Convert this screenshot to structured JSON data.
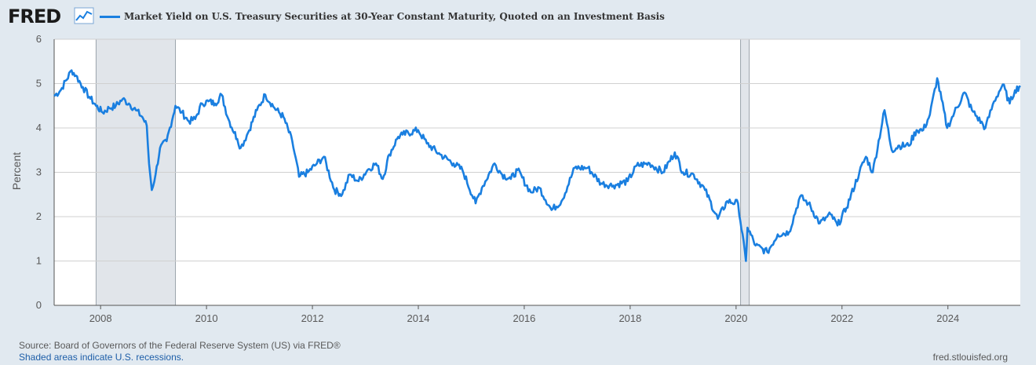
{
  "header": {
    "logo": "FRED",
    "logo_icon": "chart-line-icon",
    "title": "Market Yield on U.S. Treasury Securities at 30-Year Constant Maturity, Quoted on an Investment Basis"
  },
  "footer": {
    "source": "Source: Board of Governors of the Federal Reserve System (US) via FRED®",
    "recession_note": "Shaded areas indicate U.S. recessions.",
    "site": "fred.stlouisfed.org"
  },
  "colors": {
    "background": "#e1e9f0",
    "plot_background": "#ffffff",
    "line": "#1a7fe0",
    "recession": "#e1e5ea",
    "grid": "#d0d0d0"
  },
  "chart_data": {
    "type": "line",
    "title": "Market Yield on U.S. Treasury Securities at 30-Year Constant Maturity, Quoted on an Investment Basis",
    "xlabel": "",
    "ylabel": "Percent",
    "xlim": [
      "2007-02-15",
      "2025-05-15"
    ],
    "ylim": [
      0,
      6
    ],
    "yticks": [
      0,
      1,
      2,
      3,
      4,
      5,
      6
    ],
    "xticks": [
      "2008",
      "2010",
      "2012",
      "2014",
      "2016",
      "2018",
      "2020",
      "2022",
      "2024"
    ],
    "grid": true,
    "recessions": [
      {
        "start": "2007-12-01",
        "end": "2009-06-01"
      },
      {
        "start": "2020-02-01",
        "end": "2020-04-01"
      }
    ],
    "series": [
      {
        "values": [
          [
            "2007-02-15",
            4.72
          ],
          [
            "2007-04-01",
            4.85
          ],
          [
            "2007-06-15",
            5.3
          ],
          [
            "2007-07-15",
            5.18
          ],
          [
            "2007-09-01",
            4.92
          ],
          [
            "2007-10-15",
            4.7
          ],
          [
            "2007-12-01",
            4.5
          ],
          [
            "2008-01-15",
            4.35
          ],
          [
            "2008-03-01",
            4.45
          ],
          [
            "2008-04-15",
            4.5
          ],
          [
            "2008-06-01",
            4.65
          ],
          [
            "2008-07-15",
            4.55
          ],
          [
            "2008-09-01",
            4.4
          ],
          [
            "2008-10-15",
            4.25
          ],
          [
            "2008-11-15",
            4.05
          ],
          [
            "2008-12-01",
            3.2
          ],
          [
            "2008-12-20",
            2.6
          ],
          [
            "2009-01-15",
            2.95
          ],
          [
            "2009-02-15",
            3.55
          ],
          [
            "2009-04-01",
            3.7
          ],
          [
            "2009-06-01",
            4.5
          ],
          [
            "2009-07-15",
            4.35
          ],
          [
            "2009-09-01",
            4.15
          ],
          [
            "2009-10-15",
            4.2
          ],
          [
            "2009-12-01",
            4.55
          ],
          [
            "2010-01-15",
            4.6
          ],
          [
            "2010-03-01",
            4.55
          ],
          [
            "2010-04-15",
            4.75
          ],
          [
            "2010-06-01",
            4.2
          ],
          [
            "2010-08-01",
            3.75
          ],
          [
            "2010-08-25",
            3.55
          ],
          [
            "2010-10-15",
            3.9
          ],
          [
            "2010-12-15",
            4.4
          ],
          [
            "2011-02-10",
            4.75
          ],
          [
            "2011-04-15",
            4.45
          ],
          [
            "2011-06-15",
            4.25
          ],
          [
            "2011-08-15",
            3.7
          ],
          [
            "2011-10-01",
            2.9
          ],
          [
            "2011-12-01",
            3.0
          ],
          [
            "2012-02-01",
            3.2
          ],
          [
            "2012-03-20",
            3.35
          ],
          [
            "2012-06-01",
            2.6
          ],
          [
            "2012-07-25",
            2.5
          ],
          [
            "2012-09-15",
            2.95
          ],
          [
            "2012-11-15",
            2.8
          ],
          [
            "2013-01-15",
            3.05
          ],
          [
            "2013-03-15",
            3.2
          ],
          [
            "2013-05-01",
            2.85
          ],
          [
            "2013-06-15",
            3.4
          ],
          [
            "2013-08-15",
            3.8
          ],
          [
            "2013-09-15",
            3.85
          ],
          [
            "2013-12-31",
            3.95
          ],
          [
            "2014-03-01",
            3.65
          ],
          [
            "2014-06-01",
            3.4
          ],
          [
            "2014-09-01",
            3.2
          ],
          [
            "2014-11-01",
            3.05
          ],
          [
            "2015-01-31",
            2.3
          ],
          [
            "2015-03-15",
            2.65
          ],
          [
            "2015-06-10",
            3.2
          ],
          [
            "2015-08-01",
            2.95
          ],
          [
            "2015-10-01",
            2.85
          ],
          [
            "2015-11-15",
            3.05
          ],
          [
            "2016-02-15",
            2.55
          ],
          [
            "2016-04-15",
            2.65
          ],
          [
            "2016-07-08",
            2.15
          ],
          [
            "2016-09-15",
            2.35
          ],
          [
            "2016-12-15",
            3.1
          ],
          [
            "2017-03-15",
            3.1
          ],
          [
            "2017-06-15",
            2.75
          ],
          [
            "2017-09-07",
            2.7
          ],
          [
            "2017-12-15",
            2.8
          ],
          [
            "2018-02-15",
            3.15
          ],
          [
            "2018-05-15",
            3.2
          ],
          [
            "2018-08-15",
            3.0
          ],
          [
            "2018-11-05",
            3.45
          ],
          [
            "2018-12-31",
            3.0
          ],
          [
            "2019-03-15",
            2.95
          ],
          [
            "2019-06-01",
            2.6
          ],
          [
            "2019-08-28",
            1.95
          ],
          [
            "2019-11-01",
            2.35
          ],
          [
            "2020-01-15",
            2.3
          ],
          [
            "2020-03-09",
            1.0
          ],
          [
            "2020-03-20",
            1.75
          ],
          [
            "2020-05-15",
            1.35
          ],
          [
            "2020-08-04",
            1.2
          ],
          [
            "2020-10-15",
            1.6
          ],
          [
            "2021-01-01",
            1.65
          ],
          [
            "2021-03-18",
            2.45
          ],
          [
            "2021-05-15",
            2.3
          ],
          [
            "2021-08-01",
            1.85
          ],
          [
            "2021-10-15",
            2.05
          ],
          [
            "2021-12-01",
            1.8
          ],
          [
            "2022-02-01",
            2.2
          ],
          [
            "2022-05-01",
            3.0
          ],
          [
            "2022-06-15",
            3.35
          ],
          [
            "2022-08-01",
            3.0
          ],
          [
            "2022-10-21",
            4.4
          ],
          [
            "2022-12-10",
            3.5
          ],
          [
            "2023-02-01",
            3.6
          ],
          [
            "2023-04-05",
            3.6
          ],
          [
            "2023-05-30",
            3.95
          ],
          [
            "2023-07-15",
            3.95
          ],
          [
            "2023-08-30",
            4.3
          ],
          [
            "2023-10-19",
            5.12
          ],
          [
            "2023-12-27",
            4.0
          ],
          [
            "2024-02-15",
            4.35
          ],
          [
            "2024-04-25",
            4.8
          ],
          [
            "2024-06-15",
            4.4
          ],
          [
            "2024-09-16",
            4.0
          ],
          [
            "2024-11-15",
            4.6
          ],
          [
            "2025-01-14",
            4.98
          ],
          [
            "2025-03-03",
            4.55
          ],
          [
            "2025-04-08",
            4.85
          ],
          [
            "2025-05-15",
            4.95
          ]
        ]
      }
    ]
  }
}
